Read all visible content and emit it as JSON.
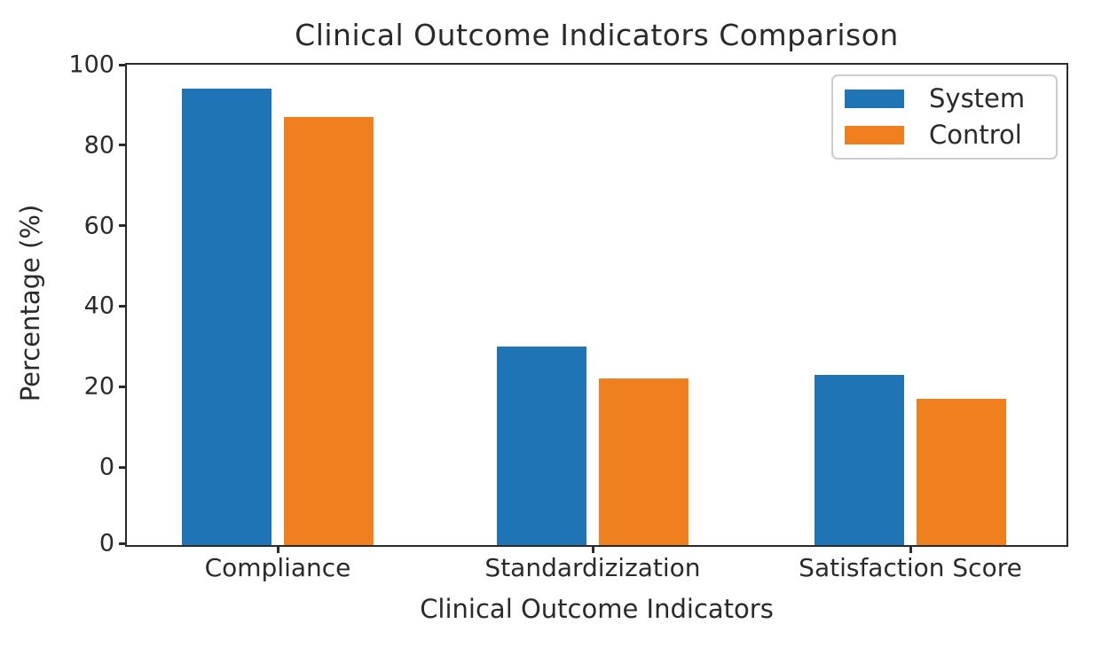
{
  "chart_data": {
    "type": "bar",
    "title": "Clinical Outcome Indicators Comparison",
    "xlabel": "Clinical Outcome Indicators",
    "ylabel": "Percentage (%)",
    "categories": [
      "Compliance",
      "Standardizization",
      "Satisfaction Score"
    ],
    "series": [
      {
        "name": "System",
        "color": "#1f74b6",
        "values": [
          94,
          30,
          23
        ]
      },
      {
        "name": "Control",
        "color": "#f0801d",
        "values": [
          87,
          22,
          17
        ]
      }
    ],
    "ylim": [
      0,
      100
    ],
    "y_ticks": [
      100,
      80,
      60,
      40,
      20,
      0
    ],
    "baseline_tick_label": "0",
    "legend_position": "upper right",
    "grid": false,
    "layout_note": "duplicate 0 label at baseline below the 0 tick; bars extend down to baseline",
    "colors": {
      "spine": "#2a2a2a",
      "text": "#2a2a2a",
      "legend_border": "#cccccc",
      "background": "#ffffff"
    }
  }
}
